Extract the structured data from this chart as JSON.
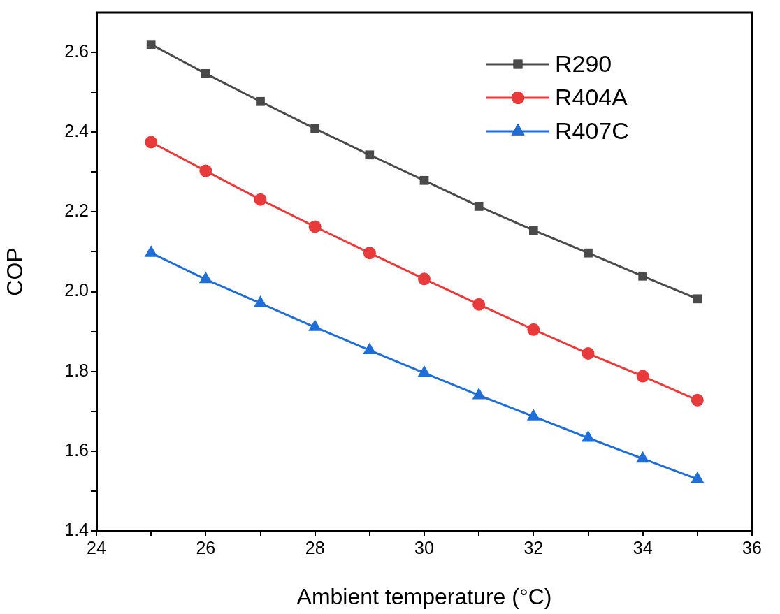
{
  "chart_data": {
    "type": "line",
    "xlabel": "Ambient temperature (°C)",
    "ylabel": "COP",
    "x": [
      25,
      26,
      27,
      28,
      29,
      30,
      31,
      32,
      33,
      34,
      35
    ],
    "series": [
      {
        "name": "R290",
        "color": "#4a4a4a",
        "marker": "square",
        "values": [
          2.62,
          2.547,
          2.477,
          2.409,
          2.343,
          2.279,
          2.214,
          2.154,
          2.097,
          2.039,
          1.982
        ]
      },
      {
        "name": "R404A",
        "color": "#e83a3a",
        "marker": "circle",
        "values": [
          2.375,
          2.303,
          2.231,
          2.163,
          2.097,
          2.032,
          1.968,
          1.905,
          1.845,
          1.788,
          1.728
        ]
      },
      {
        "name": "R407C",
        "color": "#1f6ed8",
        "marker": "triangle",
        "values": [
          2.097,
          2.031,
          1.971,
          1.911,
          1.853,
          1.796,
          1.74,
          1.687,
          1.633,
          1.581,
          1.53
        ]
      }
    ],
    "xlim": [
      24,
      36
    ],
    "xticks": [
      24,
      {
        "value": 25,
        "label": null
      },
      26,
      {
        "value": 27,
        "label": null
      },
      28,
      {
        "value": 29,
        "label": null
      },
      30,
      {
        "value": 31,
        "label": null
      },
      32,
      {
        "value": 33,
        "label": null
      },
      34,
      {
        "value": 35,
        "label": null
      },
      36
    ],
    "ylim": [
      1.4,
      2.7
    ],
    "yticks": [
      {
        "value": 1.4,
        "label": "1.4"
      },
      {
        "value": 1.5,
        "label": null
      },
      {
        "value": 1.6,
        "label": "1.6"
      },
      {
        "value": 1.7,
        "label": null
      },
      {
        "value": 1.8,
        "label": "1.8"
      },
      {
        "value": 1.9,
        "label": null
      },
      {
        "value": 2.0,
        "label": "2.0"
      },
      {
        "value": 2.1,
        "label": null
      },
      {
        "value": 2.2,
        "label": "2.2"
      },
      {
        "value": 2.3,
        "label": null
      },
      {
        "value": 2.4,
        "label": "2.4"
      },
      {
        "value": 2.5,
        "label": null
      },
      {
        "value": 2.6,
        "label": "2.6"
      }
    ],
    "legend": "top right",
    "line_style": "solid"
  }
}
